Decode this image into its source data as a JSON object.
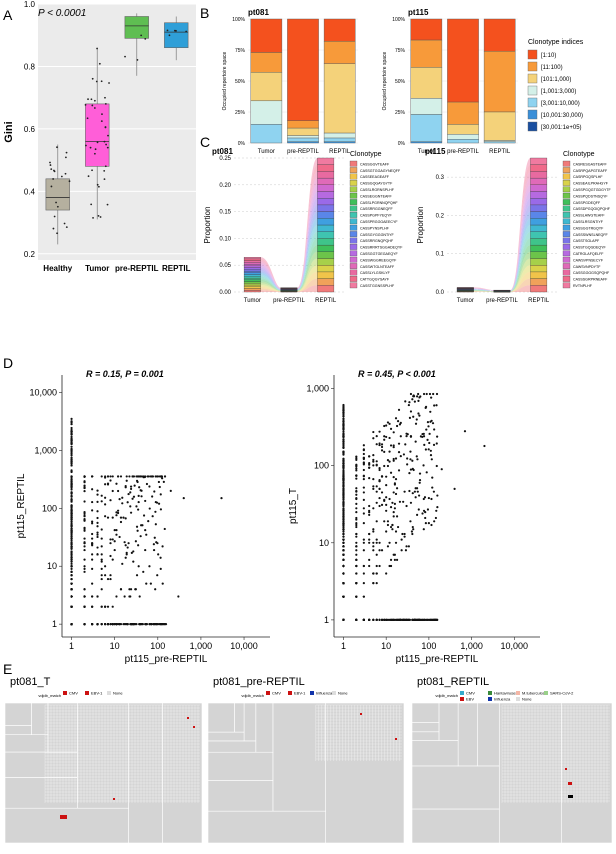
{
  "panels": {
    "a": {
      "letter": "A"
    },
    "b": {
      "letter": "B"
    },
    "c": {
      "letter": "C"
    },
    "d": {
      "letter": "D"
    },
    "e": {
      "letter": "E"
    }
  },
  "chart_data": [
    {
      "id": "gini",
      "type": "box",
      "annotation": "P < 0.0001",
      "ylabel": "Gini",
      "categories": [
        "Healthy",
        "Tumor",
        "pre-REPTIL",
        "REPTIL"
      ],
      "colors": [
        "#b5b09f",
        "#ff5ed8",
        "#5fbe52",
        "#2f9fd8"
      ],
      "ylim": [
        0.2,
        1.0
      ],
      "yticks": [
        "0.2",
        "0.4",
        "0.6",
        "0.8",
        "1.0"
      ],
      "boxes": [
        {
          "min": 0.23,
          "q1": 0.34,
          "median": 0.38,
          "q3": 0.44,
          "max": 0.55
        },
        {
          "min": 0.31,
          "q1": 0.48,
          "median": 0.56,
          "q3": 0.68,
          "max": 0.86
        },
        {
          "min": 0.77,
          "q1": 0.89,
          "median": 0.93,
          "q3": 0.96,
          "max": 0.97
        },
        {
          "min": 0.82,
          "q1": 0.86,
          "median": 0.91,
          "q3": 0.94,
          "max": 0.96
        }
      ]
    },
    {
      "id": "repertoire",
      "type": "bar",
      "stacked": true,
      "ylabel": "Occupied repertoire space",
      "yticks": [
        "0%",
        "25%",
        "50%",
        "75%",
        "100%"
      ],
      "categories": [
        "Tumor",
        "pre-REPTIL",
        "REPTIL"
      ],
      "legend_title": "Clonotype indices",
      "legend": [
        "[1:10)",
        "[11:100)",
        "[101:1,000)",
        "[1,001:3,000)",
        "[3,001:10,000)",
        "[10,001:30,000)",
        "[30,001:1e+05)"
      ],
      "colors": [
        "#f4511e",
        "#f79a3a",
        "#f4d27a",
        "#d4f0e8",
        "#8fd3f0",
        "#3a8fd8",
        "#1a4fa0"
      ],
      "panels": [
        {
          "title": "pt081",
          "stacks": [
            [
              0.27,
              0.16,
              0.23,
              0.19,
              0.15,
              0,
              0
            ],
            [
              0.82,
              0.06,
              0.06,
              0.02,
              0.03,
              0.01,
              0
            ],
            [
              0.18,
              0.18,
              0.56,
              0.04,
              0.03,
              0.01,
              0
            ]
          ]
        },
        {
          "title": "pt115",
          "stacks": [
            [
              0.17,
              0.22,
              0.25,
              0.13,
              0.22,
              0.01,
              0
            ],
            [
              0.67,
              0.18,
              0.08,
              0.04,
              0.03,
              0,
              0
            ],
            [
              0.26,
              0.49,
              0.23,
              0.01,
              0.01,
              0,
              0
            ]
          ]
        }
      ]
    },
    {
      "id": "clonotype",
      "type": "bar",
      "ylabel": "Proportion",
      "categories": [
        "Tumor",
        "pre-REPTIL",
        "REPTIL"
      ],
      "legend_title": "Clonotype",
      "panels": [
        {
          "title": "pt081",
          "ylim": [
            0,
            0.25
          ],
          "yticks": [
            "0.00",
            "0.05",
            "0.10",
            "0.15",
            "0.20",
            "0.25"
          ],
          "totals": [
            0.065,
            0.008,
            0.25
          ],
          "clones": [
            "CASSGGVTEAFF",
            "CASSGTGGAGYNEQFF",
            "CASSEEAGEAFF",
            "CASSGQGAYGYTF",
            "CASSLRGRNSPLHF",
            "CASSEGGNTEAFF",
            "CASSLPGRNNQPQHF",
            "CASSRRGGNEQFF",
            "CASSPGPFYEQYF",
            "CASSPRGGGAEECYF",
            "CASSPYNSPLHF",
            "CASSGYGGGNTIYF",
            "CASSRRGNQPQHF",
            "CASSRRRTSGGADEQYF",
            "CASSGGTGEGAEQYF",
            "CASSWGGREEGQYF",
            "CASSWTGLNTEAFF",
            "CASSLYLGSKLYF",
            "CATTGQGYSAYF",
            "CASSTGGNSSPLHF"
          ]
        },
        {
          "title": "pt115",
          "ylim": [
            0,
            0.35
          ],
          "yticks": [
            "0.0",
            "0.1",
            "0.2",
            "0.3"
          ],
          "totals": [
            0.012,
            0.005,
            0.35
          ],
          "clones": [
            "CASRESGASTEAFF",
            "CASRPQAPGTEAFF",
            "CASRPGQSPLHF",
            "CASSEAILPRAHGYF",
            "CASSPGQGTGDGYTF",
            "CASSPQDSTNSQYF",
            "CASSPGDEQFF",
            "CASSDPGQGIQPQHF",
            "CASSLAWGTEAFF",
            "CASSLRSGNTIYF",
            "CASSGGTRGQYF",
            "CASSSWNSLNEQFF",
            "CASSTSGLAPF",
            "CASSTGQGDEQYF",
            "CATRGLAFQELFF",
            "CAWSVPNSECYF",
            "CAWSVNPDYTF",
            "CASSGGGGSQPQHF",
            "CASSSGRPRNEAFF",
            "RVTNPLHF"
          ]
        }
      ]
    },
    {
      "id": "scatter_reptil",
      "type": "scatter",
      "annotation": "R = 0.15, P = 0.001",
      "xlabel": "pt115_pre-REPTIL",
      "ylabel": "pt115_REPTIL",
      "xticks": [
        "1",
        "10",
        "100",
        "1,000",
        "10,000"
      ],
      "yticks": [
        "1",
        "10",
        "100",
        "1,000",
        "10,000"
      ],
      "xlim": [
        0.6,
        40000
      ],
      "ylim": [
        0.6,
        20000
      ],
      "log_scale": true
    },
    {
      "id": "scatter_tumor",
      "type": "scatter",
      "annotation": "R = 0.45, P < 0.001",
      "xlabel": "pt115_pre-REPTIL",
      "ylabel": "pt115_T",
      "xticks": [
        "1",
        "10",
        "100",
        "1,000",
        "10,000"
      ],
      "yticks": [
        "1",
        "10",
        "100",
        "1,000"
      ],
      "xlim": [
        0.6,
        40000
      ],
      "ylim": [
        0.6,
        1500
      ],
      "log_scale": true
    },
    {
      "id": "treemaps",
      "type": "heatmap",
      "panels": [
        {
          "title": "pt081_T",
          "legend_label": "vdjdb_match",
          "legend": [
            "CMV",
            "EBV-1",
            "None"
          ],
          "legend_colors": [
            "#cc1111",
            "#cc1111",
            "#dddddd"
          ]
        },
        {
          "title": "pt081_pre-REPTIL",
          "legend_label": "vdjdb_match",
          "legend": [
            "CMV",
            "EBV-1",
            "Influenza",
            "None"
          ],
          "legend_colors": [
            "#cc1111",
            "#cc1111",
            "#1133aa",
            "#dddddd"
          ]
        },
        {
          "title": "pt081_REPTIL",
          "legend_label": "vdjdb_match",
          "legend": [
            "CMV",
            "EBV",
            "Hantaviruses",
            "Influenza",
            "M.tuberculosis",
            "None",
            "SARS-CoV-2"
          ],
          "legend_colors": [
            "#33aacc",
            "#cc1111",
            "#3a8a3a",
            "#1133aa",
            "#f4b6a6",
            "#dddddd",
            "#9ad08a"
          ]
        }
      ]
    }
  ]
}
